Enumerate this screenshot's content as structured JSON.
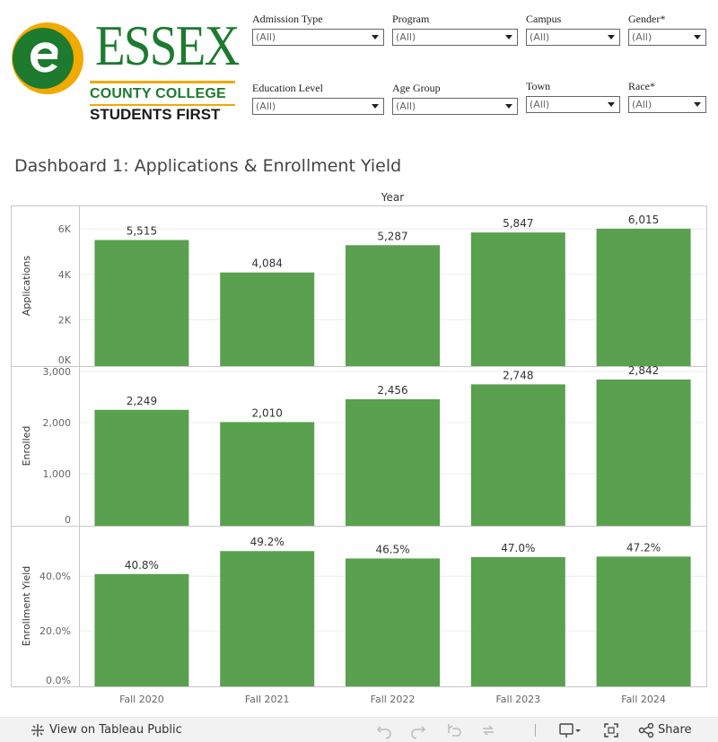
{
  "logo": {
    "name": "ESSEX",
    "subtitle": "COUNTY COLLEGE",
    "tagline": "STUDENTS FIRST"
  },
  "filters": [
    {
      "label": "Admission Type",
      "value": "(All)"
    },
    {
      "label": "Program",
      "value": "(All)"
    },
    {
      "label": "Campus",
      "value": "(All)"
    },
    {
      "label": "Gender*",
      "value": "(All)"
    },
    {
      "label": "Education Level",
      "value": "(All)"
    },
    {
      "label": "Age Group",
      "value": "(All)"
    },
    {
      "label": "Town",
      "value": "(All)"
    },
    {
      "label": "Race*",
      "value": "(All)"
    }
  ],
  "title": "Dashboard 1: Applications & Enrollment Yield",
  "colors": {
    "bar": "#59a14f",
    "grid": "#ececec",
    "frame": "#c8c8c8",
    "text": "#666666"
  },
  "chart_data": {
    "type": "bar",
    "column_header": "Year",
    "categories": [
      "Fall 2020",
      "Fall 2021",
      "Fall 2022",
      "Fall 2023",
      "Fall 2024"
    ],
    "panels": [
      {
        "ylabel": "Applications",
        "values": [
          5515,
          4084,
          5287,
          5847,
          6015
        ],
        "value_labels": [
          "5,515",
          "4,084",
          "5,287",
          "5,847",
          "6,015"
        ],
        "ylim": [
          0,
          6800
        ],
        "ticks": [
          0,
          2000,
          4000,
          6000
        ],
        "tick_labels": [
          "0K",
          "2K",
          "4K",
          "6K"
        ]
      },
      {
        "ylabel": "Enrolled",
        "values": [
          2249,
          2010,
          2456,
          2748,
          2842
        ],
        "value_labels": [
          "2,249",
          "2,010",
          "2,456",
          "2,748",
          "2,842"
        ],
        "ylim": [
          0,
          3000
        ],
        "ticks": [
          0,
          1000,
          2000,
          3000
        ],
        "tick_labels": [
          "0",
          "1,000",
          "2,000",
          "3,000"
        ]
      },
      {
        "ylabel": "Enrollment Yield",
        "values": [
          40.8,
          49.2,
          46.5,
          47.0,
          47.2
        ],
        "value_labels": [
          "40.8%",
          "49.2%",
          "46.5%",
          "47.0%",
          "47.2%"
        ],
        "ylim": [
          0,
          56.5
        ],
        "ticks": [
          0,
          20,
          40
        ],
        "tick_labels": [
          "0.0%",
          "20.0%",
          "40.0%"
        ]
      }
    ],
    "grid": true
  },
  "toolbar": {
    "view_label": "View on Tableau Public",
    "share_label": "Share",
    "icons": [
      "tableau-logo-icon",
      "undo-icon",
      "redo-icon",
      "revert-icon",
      "refresh-icon",
      "download-icon",
      "fullscreen-icon",
      "share-icon"
    ]
  }
}
